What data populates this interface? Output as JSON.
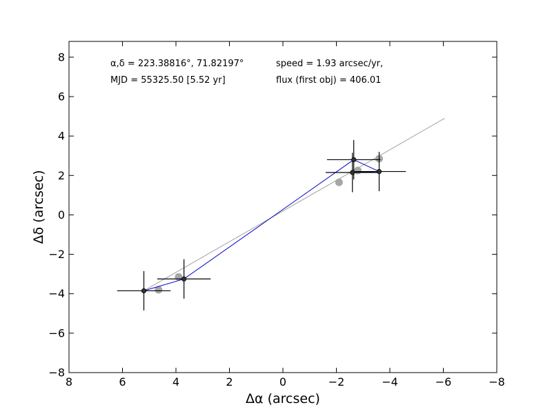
{
  "chart_data": {
    "type": "scatter",
    "title": "",
    "xlabel": "Δα (arcsec)",
    "ylabel": "Δδ (arcsec)",
    "xlim": [
      8,
      -8
    ],
    "ylim": [
      -8,
      8.8
    ],
    "x_ticks": [
      8,
      6,
      4,
      2,
      0,
      -2,
      -4,
      -6,
      -8
    ],
    "x_tick_labels": [
      "8",
      "6",
      "4",
      "2",
      "0",
      "−2",
      "−4",
      "−6",
      "−8"
    ],
    "y_ticks": [
      -8,
      -6,
      -4,
      -2,
      0,
      2,
      4,
      6,
      8
    ],
    "y_tick_labels": [
      "−8",
      "−6",
      "−4",
      "−2",
      "0",
      "2",
      "4",
      "6",
      "8"
    ],
    "grid": false,
    "annotations": {
      "coords": "α,δ = 223.38816°, 71.82197°",
      "mjd": "MJD = 55325.50 [5.52 yr]",
      "speed": "speed = 1.93 arcsec/yr,",
      "flux": "flux (first obj) = 406.01"
    },
    "fit_line": {
      "color": "#a0a0a0",
      "start": [
        5.2,
        -3.85
      ],
      "end": [
        -6.05,
        4.9
      ]
    },
    "model_points": {
      "color": "#a6a6a6",
      "x": [
        4.65,
        3.9,
        -2.1,
        -2.8,
        -3.6
      ],
      "y": [
        -3.8,
        -3.15,
        1.65,
        2.25,
        2.85
      ]
    },
    "observed": {
      "color": "#0000cc",
      "path_order": [
        0,
        1,
        3,
        4,
        2
      ],
      "points": [
        {
          "x": 5.2,
          "y": -3.85,
          "xerr": 1.0,
          "yerr": 1.0
        },
        {
          "x": 3.7,
          "y": -3.25,
          "xerr": 1.0,
          "yerr": 1.0
        },
        {
          "x": -2.6,
          "y": 2.15,
          "xerr": 1.0,
          "yerr": 1.0
        },
        {
          "x": -2.65,
          "y": 2.8,
          "xerr": 1.0,
          "yerr": 1.0
        },
        {
          "x": -3.6,
          "y": 2.2,
          "xerr": 1.0,
          "yerr": 1.0
        }
      ]
    }
  }
}
